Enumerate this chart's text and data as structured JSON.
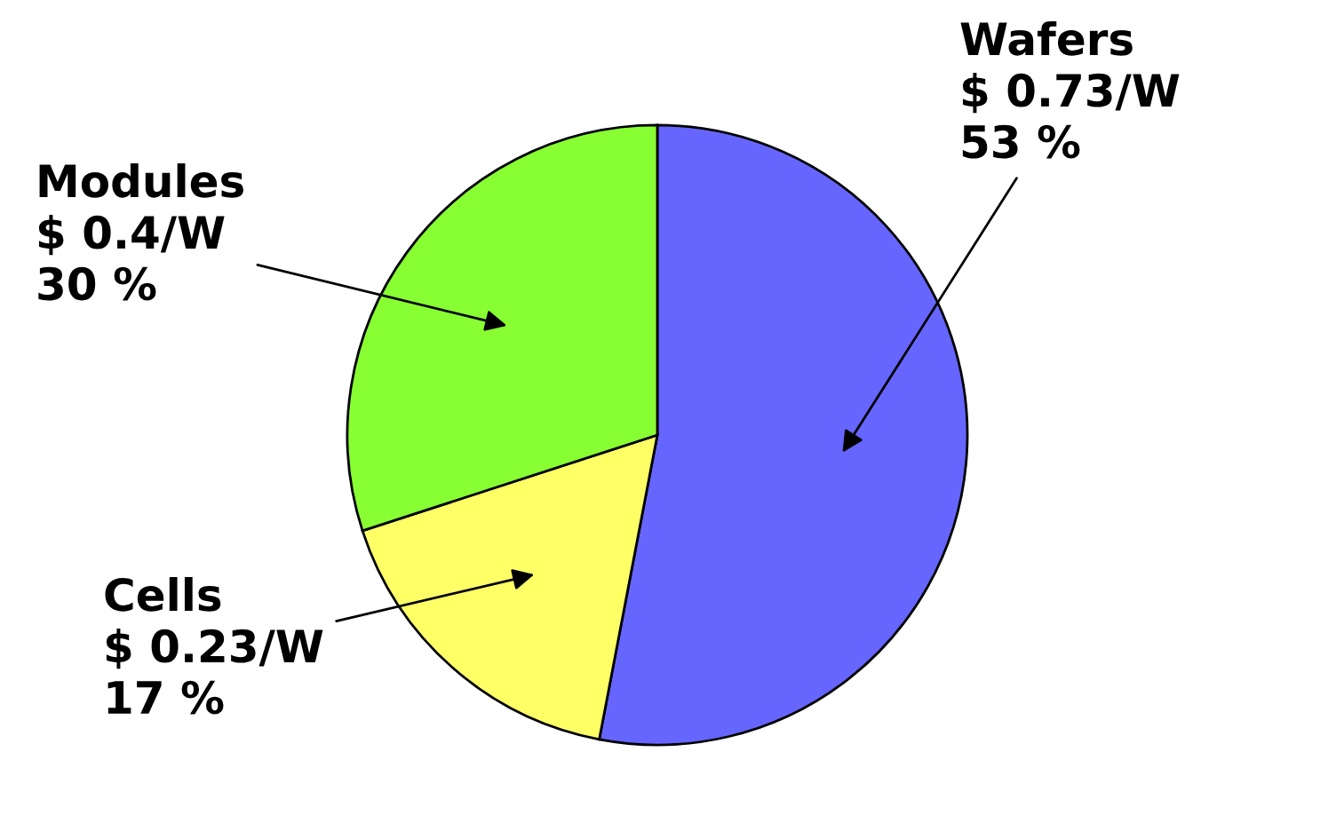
{
  "chart_data": {
    "type": "pie",
    "categories": [
      "Wafers",
      "Cells",
      "Modules"
    ],
    "values": [
      53,
      17,
      30
    ],
    "value_labels": [
      "$ 0.73/W\n53 %",
      "$ 0.23/W\n17 %",
      "$ 0.4/W\n30 %"
    ],
    "colors": [
      "#6666ff",
      "#ffff66",
      "#88ff33"
    ]
  }
}
